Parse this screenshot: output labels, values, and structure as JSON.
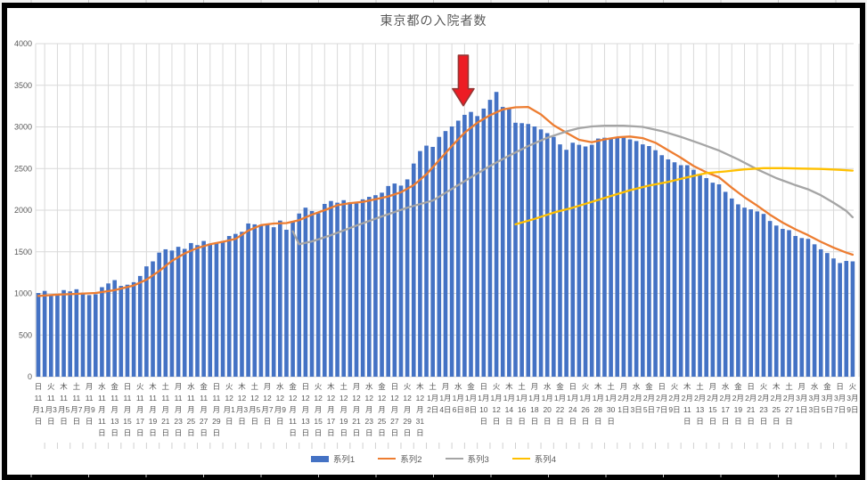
{
  "window": {
    "background": "#f3f3f3",
    "chart_background": "#ffffff",
    "frame_color": "#000000"
  },
  "chart_data": {
    "type": "bar",
    "subtype": "combo bar + 3 line series",
    "title": "東京都の入院者数",
    "text_color": "#595959",
    "grid": {
      "color": "#d9d9d9",
      "horizontal": true,
      "vertical": true
    },
    "ylim": [
      0,
      4000
    ],
    "yticks": [
      0,
      500,
      1000,
      1500,
      2000,
      2500,
      3000,
      3500,
      4000
    ],
    "x_label_note": "labels every 2nd day; bars are daily",
    "x_labels": [
      [
        "日",
        11,
        1
      ],
      [
        "火",
        11,
        3
      ],
      [
        "木",
        11,
        5
      ],
      [
        "土",
        11,
        7
      ],
      [
        "月",
        11,
        9
      ],
      [
        "水",
        11,
        11
      ],
      [
        "金",
        11,
        13
      ],
      [
        "日",
        11,
        15
      ],
      [
        "火",
        11,
        17
      ],
      [
        "木",
        11,
        19
      ],
      [
        "土",
        11,
        21
      ],
      [
        "月",
        11,
        23
      ],
      [
        "水",
        11,
        25
      ],
      [
        "金",
        11,
        27
      ],
      [
        "日",
        11,
        29
      ],
      [
        "火",
        12,
        1
      ],
      [
        "木",
        12,
        3
      ],
      [
        "土",
        12,
        5
      ],
      [
        "月",
        12,
        7
      ],
      [
        "水",
        12,
        9
      ],
      [
        "金",
        12,
        11
      ],
      [
        "日",
        12,
        13
      ],
      [
        "火",
        12,
        15
      ],
      [
        "木",
        12,
        17
      ],
      [
        "土",
        12,
        19
      ],
      [
        "月",
        12,
        21
      ],
      [
        "水",
        12,
        23
      ],
      [
        "金",
        12,
        25
      ],
      [
        "日",
        12,
        27
      ],
      [
        "火",
        12,
        29
      ],
      [
        "木",
        12,
        31
      ],
      [
        "土",
        1,
        2
      ],
      [
        "月",
        1,
        4
      ],
      [
        "水",
        1,
        6
      ],
      [
        "金",
        1,
        8
      ],
      [
        "日",
        1,
        10
      ],
      [
        "火",
        1,
        12
      ],
      [
        "木",
        1,
        14
      ],
      [
        "土",
        1,
        16
      ],
      [
        "月",
        1,
        18
      ],
      [
        "水",
        1,
        20
      ],
      [
        "金",
        1,
        22
      ],
      [
        "日",
        1,
        24
      ],
      [
        "火",
        1,
        26
      ],
      [
        "木",
        1,
        28
      ],
      [
        "土",
        1,
        30
      ],
      [
        "月",
        2,
        1
      ],
      [
        "水",
        2,
        3
      ],
      [
        "金",
        2,
        5
      ],
      [
        "日",
        2,
        7
      ],
      [
        "火",
        2,
        9
      ],
      [
        "木",
        2,
        11
      ],
      [
        "土",
        2,
        13
      ],
      [
        "月",
        2,
        15
      ],
      [
        "水",
        2,
        17
      ],
      [
        "金",
        2,
        19
      ],
      [
        "日",
        2,
        21
      ],
      [
        "火",
        2,
        23
      ],
      [
        "木",
        2,
        25
      ],
      [
        "土",
        2,
        27
      ],
      [
        "月",
        3,
        1
      ],
      [
        "水",
        3,
        3
      ],
      [
        "金",
        3,
        5
      ],
      [
        "日",
        3,
        7
      ],
      [
        "火",
        3,
        9
      ]
    ],
    "bar_series": {
      "name": "系列1",
      "color": "#4472C4",
      "daily_values": [
        1005,
        1030,
        985,
        990,
        1040,
        1025,
        1050,
        1010,
        980,
        990,
        1075,
        1120,
        1160,
        1090,
        1105,
        1135,
        1210,
        1325,
        1385,
        1490,
        1530,
        1515,
        1560,
        1535,
        1605,
        1580,
        1630,
        1600,
        1610,
        1630,
        1690,
        1715,
        1740,
        1840,
        1830,
        1825,
        1835,
        1795,
        1875,
        1765,
        1870,
        1960,
        2030,
        1990,
        1965,
        2075,
        2110,
        2090,
        2120,
        2095,
        2080,
        2130,
        2160,
        2180,
        2210,
        2290,
        2320,
        2295,
        2370,
        2560,
        2710,
        2775,
        2760,
        2880,
        2950,
        3005,
        3075,
        3145,
        3180,
        3130,
        3220,
        3325,
        3420,
        3240,
        3220,
        3050,
        3045,
        3035,
        3005,
        2970,
        2925,
        2880,
        2790,
        2725,
        2810,
        2785,
        2765,
        2785,
        2860,
        2870,
        2870,
        2880,
        2880,
        2850,
        2830,
        2790,
        2770,
        2720,
        2660,
        2610,
        2575,
        2540,
        2540,
        2485,
        2420,
        2385,
        2330,
        2310,
        2220,
        2140,
        2070,
        2030,
        2010,
        1985,
        1955,
        1870,
        1815,
        1775,
        1760,
        1690,
        1665,
        1655,
        1590,
        1530,
        1485,
        1420,
        1365,
        1390,
        1385
      ]
    },
    "line_series": [
      {
        "name": "系列2",
        "color": "#ED7D31",
        "points": [
          [
            0,
            970
          ],
          [
            3,
            985
          ],
          [
            6,
            995
          ],
          [
            9,
            1005
          ],
          [
            12,
            1040
          ],
          [
            15,
            1095
          ],
          [
            17,
            1165
          ],
          [
            19,
            1270
          ],
          [
            21,
            1390
          ],
          [
            23,
            1480
          ],
          [
            25,
            1545
          ],
          [
            27,
            1590
          ],
          [
            29,
            1620
          ],
          [
            31,
            1655
          ],
          [
            33,
            1755
          ],
          [
            35,
            1820
          ],
          [
            37,
            1840
          ],
          [
            39,
            1845
          ],
          [
            41,
            1880
          ],
          [
            43,
            1945
          ],
          [
            45,
            2000
          ],
          [
            47,
            2060
          ],
          [
            49,
            2085
          ],
          [
            51,
            2100
          ],
          [
            53,
            2130
          ],
          [
            55,
            2165
          ],
          [
            57,
            2215
          ],
          [
            59,
            2300
          ],
          [
            61,
            2430
          ],
          [
            63,
            2600
          ],
          [
            65,
            2770
          ],
          [
            67,
            2930
          ],
          [
            69,
            3050
          ],
          [
            71,
            3140
          ],
          [
            73,
            3210
          ],
          [
            75,
            3235
          ],
          [
            77,
            3240
          ],
          [
            79,
            3150
          ],
          [
            81,
            3020
          ],
          [
            83,
            2930
          ],
          [
            85,
            2845
          ],
          [
            87,
            2815
          ],
          [
            89,
            2850
          ],
          [
            91,
            2875
          ],
          [
            93,
            2885
          ],
          [
            95,
            2865
          ],
          [
            97,
            2810
          ],
          [
            99,
            2720
          ],
          [
            101,
            2630
          ],
          [
            103,
            2530
          ],
          [
            105,
            2455
          ],
          [
            107,
            2395
          ],
          [
            109,
            2270
          ],
          [
            111,
            2155
          ],
          [
            113,
            2055
          ],
          [
            115,
            1945
          ],
          [
            117,
            1850
          ],
          [
            119,
            1770
          ],
          [
            121,
            1700
          ],
          [
            123,
            1620
          ],
          [
            125,
            1550
          ],
          [
            127,
            1490
          ],
          [
            128,
            1465
          ]
        ]
      },
      {
        "name": "系列3",
        "color": "#A5A5A5",
        "points": [
          [
            40,
            1745
          ],
          [
            41,
            1590
          ],
          [
            43,
            1625
          ],
          [
            46,
            1700
          ],
          [
            50,
            1815
          ],
          [
            54,
            1925
          ],
          [
            58,
            2030
          ],
          [
            62,
            2115
          ],
          [
            65,
            2255
          ],
          [
            68,
            2395
          ],
          [
            71,
            2530
          ],
          [
            74,
            2655
          ],
          [
            77,
            2770
          ],
          [
            80,
            2870
          ],
          [
            83,
            2945
          ],
          [
            85,
            2985
          ],
          [
            87,
            3005
          ],
          [
            89,
            3015
          ],
          [
            92,
            3015
          ],
          [
            95,
            3000
          ],
          [
            98,
            2950
          ],
          [
            101,
            2880
          ],
          [
            104,
            2800
          ],
          [
            107,
            2715
          ],
          [
            110,
            2610
          ],
          [
            113,
            2490
          ],
          [
            116,
            2385
          ],
          [
            119,
            2300
          ],
          [
            121,
            2250
          ],
          [
            123,
            2180
          ],
          [
            125,
            2090
          ],
          [
            127,
            1990
          ],
          [
            128,
            1915
          ]
        ]
      },
      {
        "name": "系列4",
        "color": "#FFC000",
        "points": [
          [
            75,
            1830
          ],
          [
            78,
            1895
          ],
          [
            81,
            1970
          ],
          [
            84,
            2030
          ],
          [
            87,
            2100
          ],
          [
            90,
            2170
          ],
          [
            93,
            2240
          ],
          [
            96,
            2295
          ],
          [
            99,
            2340
          ],
          [
            102,
            2395
          ],
          [
            105,
            2445
          ],
          [
            108,
            2465
          ],
          [
            111,
            2490
          ],
          [
            114,
            2505
          ],
          [
            117,
            2505
          ],
          [
            120,
            2500
          ],
          [
            123,
            2495
          ],
          [
            126,
            2485
          ],
          [
            128,
            2475
          ]
        ]
      }
    ],
    "annotation_arrow": {
      "day_index": 66.8,
      "top_value": 3860,
      "tip_value": 3255,
      "fill": "#ED1C24",
      "stroke": "#943634"
    },
    "legend_position": "bottom"
  },
  "legend": {
    "items": [
      {
        "label": "系列1",
        "type": "bar",
        "color": "#4472C4"
      },
      {
        "label": "系列2",
        "type": "line",
        "color": "#ED7D31"
      },
      {
        "label": "系列3",
        "type": "line",
        "color": "#A5A5A5"
      },
      {
        "label": "系列4",
        "type": "line",
        "color": "#FFC000"
      }
    ]
  }
}
